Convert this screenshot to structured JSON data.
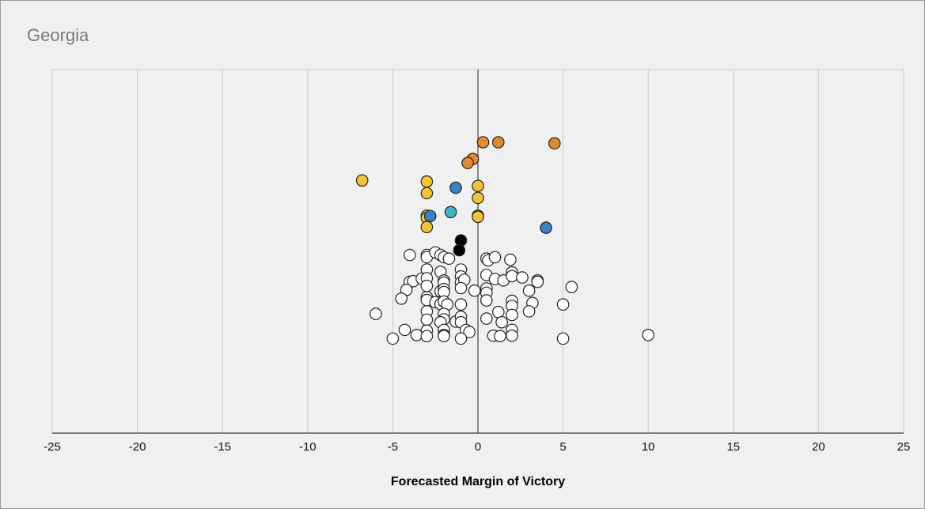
{
  "chart_data": {
    "type": "scatter",
    "title": "Georgia",
    "xlabel": "Forecasted Margin of Victory",
    "ylabel": "",
    "xlim": [
      -25,
      25
    ],
    "xticks": [
      "-25",
      "-20",
      "-15",
      "-10",
      "-5",
      "0",
      "5",
      "10",
      "15",
      "20",
      "25"
    ],
    "grid": true,
    "legend": "none",
    "y_note": "y is vertical stack position (0 = top of plot, 100 = bottom)",
    "series": [
      {
        "color": "#e38a2e",
        "points": [
          [
            0.3,
            20
          ],
          [
            1.2,
            20
          ],
          [
            4.5,
            20.3
          ],
          [
            -0.3,
            24.6
          ],
          [
            -0.6,
            25.7
          ]
        ]
      },
      {
        "color": "#f5c330",
        "points": [
          [
            -6.8,
            30.5
          ],
          [
            -3.0,
            30.8
          ],
          [
            -3.0,
            34.0
          ],
          [
            0.0,
            32.0
          ],
          [
            0.0,
            35.3
          ],
          [
            -3.0,
            40.2
          ],
          [
            -3.0,
            40.8
          ],
          [
            0.0,
            40.2
          ],
          [
            0.0,
            40.5
          ],
          [
            -3.0,
            43.3
          ]
        ]
      },
      {
        "color": "#3a82c8",
        "points": [
          [
            -1.3,
            32.5
          ],
          [
            -2.8,
            40.3
          ],
          [
            4.0,
            43.5
          ]
        ]
      },
      {
        "color": "#3cb8c2",
        "points": [
          [
            -1.6,
            39.2
          ]
        ]
      },
      {
        "color": "#000000",
        "points": [
          [
            -1.0,
            47.0
          ],
          [
            -1.1,
            49.7
          ]
        ]
      },
      {
        "color": "#ffffff",
        "points": [
          [
            -4.0,
            51.0
          ],
          [
            -3.0,
            51.0
          ],
          [
            -3.0,
            51.6
          ],
          [
            -2.5,
            50.3
          ],
          [
            -2.2,
            51.0
          ],
          [
            -2.0,
            51.6
          ],
          [
            -1.7,
            52.0
          ],
          [
            0.5,
            52.0
          ],
          [
            0.6,
            52.5
          ],
          [
            1.0,
            51.6
          ],
          [
            1.9,
            52.3
          ],
          [
            -3.0,
            55.0
          ],
          [
            -2.2,
            55.6
          ],
          [
            -1.0,
            55.0
          ],
          [
            -1.0,
            56.9
          ],
          [
            0.5,
            56.5
          ],
          [
            1.0,
            57.6
          ],
          [
            1.5,
            58.0
          ],
          [
            2.0,
            55.8
          ],
          [
            2.0,
            56.8
          ],
          [
            2.6,
            57.2
          ],
          [
            3.5,
            58.0
          ],
          [
            3.5,
            58.4
          ],
          [
            -4.0,
            58.4
          ],
          [
            -3.8,
            58.2
          ],
          [
            -3.3,
            57.5
          ],
          [
            -3.0,
            57.4
          ],
          [
            -2.0,
            58.0
          ],
          [
            -2.0,
            58.6
          ],
          [
            -1.0,
            58.6
          ],
          [
            -0.8,
            57.8
          ],
          [
            -4.2,
            60.6
          ],
          [
            -3.0,
            59.5
          ],
          [
            -2.2,
            61.0
          ],
          [
            -2.0,
            60.4
          ],
          [
            -2.0,
            61.2
          ],
          [
            -1.0,
            60.1
          ],
          [
            -0.2,
            60.8
          ],
          [
            0.5,
            60.2
          ],
          [
            0.5,
            61.4
          ],
          [
            3.0,
            60.8
          ],
          [
            5.5,
            59.8
          ],
          [
            -4.5,
            63.0
          ],
          [
            -3.0,
            62.6
          ],
          [
            -3.0,
            63.4
          ],
          [
            -2.5,
            64.0
          ],
          [
            -2.2,
            64.5
          ],
          [
            -2.0,
            63.8
          ],
          [
            -1.8,
            64.6
          ],
          [
            -1.0,
            64.6
          ],
          [
            0.5,
            63.5
          ],
          [
            2.0,
            63.6
          ],
          [
            2.0,
            65.0
          ],
          [
            3.2,
            64.2
          ],
          [
            5.0,
            64.6
          ],
          [
            -6.0,
            67.2
          ],
          [
            -3.0,
            66.5
          ],
          [
            -3.0,
            68.8
          ],
          [
            -2.0,
            67.2
          ],
          [
            -2.0,
            68.7
          ],
          [
            -2.2,
            69.5
          ],
          [
            -1.3,
            69.3
          ],
          [
            -1.0,
            68.0
          ],
          [
            -1.0,
            69.5
          ],
          [
            0.5,
            68.5
          ],
          [
            1.2,
            66.7
          ],
          [
            1.4,
            69.5
          ],
          [
            2.0,
            67.5
          ],
          [
            3.0,
            66.5
          ],
          [
            -4.3,
            71.6
          ],
          [
            -3.0,
            71.8
          ],
          [
            -2.0,
            71.6
          ],
          [
            -0.7,
            71.6
          ],
          [
            -0.5,
            72.2
          ],
          [
            2.0,
            71.6
          ],
          [
            -3.6,
            73.0
          ],
          [
            -3.0,
            73.3
          ],
          [
            -2.0,
            73.0
          ],
          [
            -2.0,
            73.3
          ],
          [
            0.9,
            73.2
          ],
          [
            1.3,
            73.3
          ],
          [
            2.0,
            73.2
          ],
          [
            10.0,
            73.0
          ],
          [
            -5.0,
            74.0
          ],
          [
            -1.0,
            74.0
          ],
          [
            5.0,
            74.0
          ]
        ]
      }
    ]
  }
}
